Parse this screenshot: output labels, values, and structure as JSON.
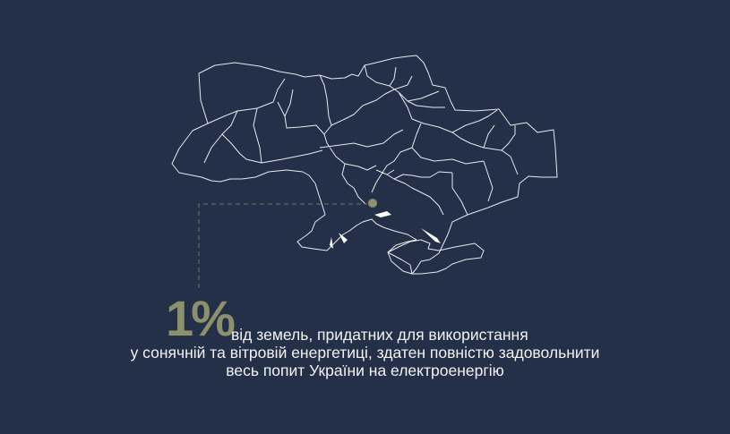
{
  "highlight": {
    "value": "1%",
    "color": "#8c906c"
  },
  "caption": {
    "line1": "від земель, придатних для використання",
    "line2": "у сонячній та вітровій енергетиці, здатен повністю задовольнити",
    "line3": "весь попит України на електроенергію"
  },
  "map": {
    "icon": "ukraine-regions-map",
    "marker_color": "#8c906c",
    "outline_color": "#ffffff"
  },
  "background_color": "#243047"
}
